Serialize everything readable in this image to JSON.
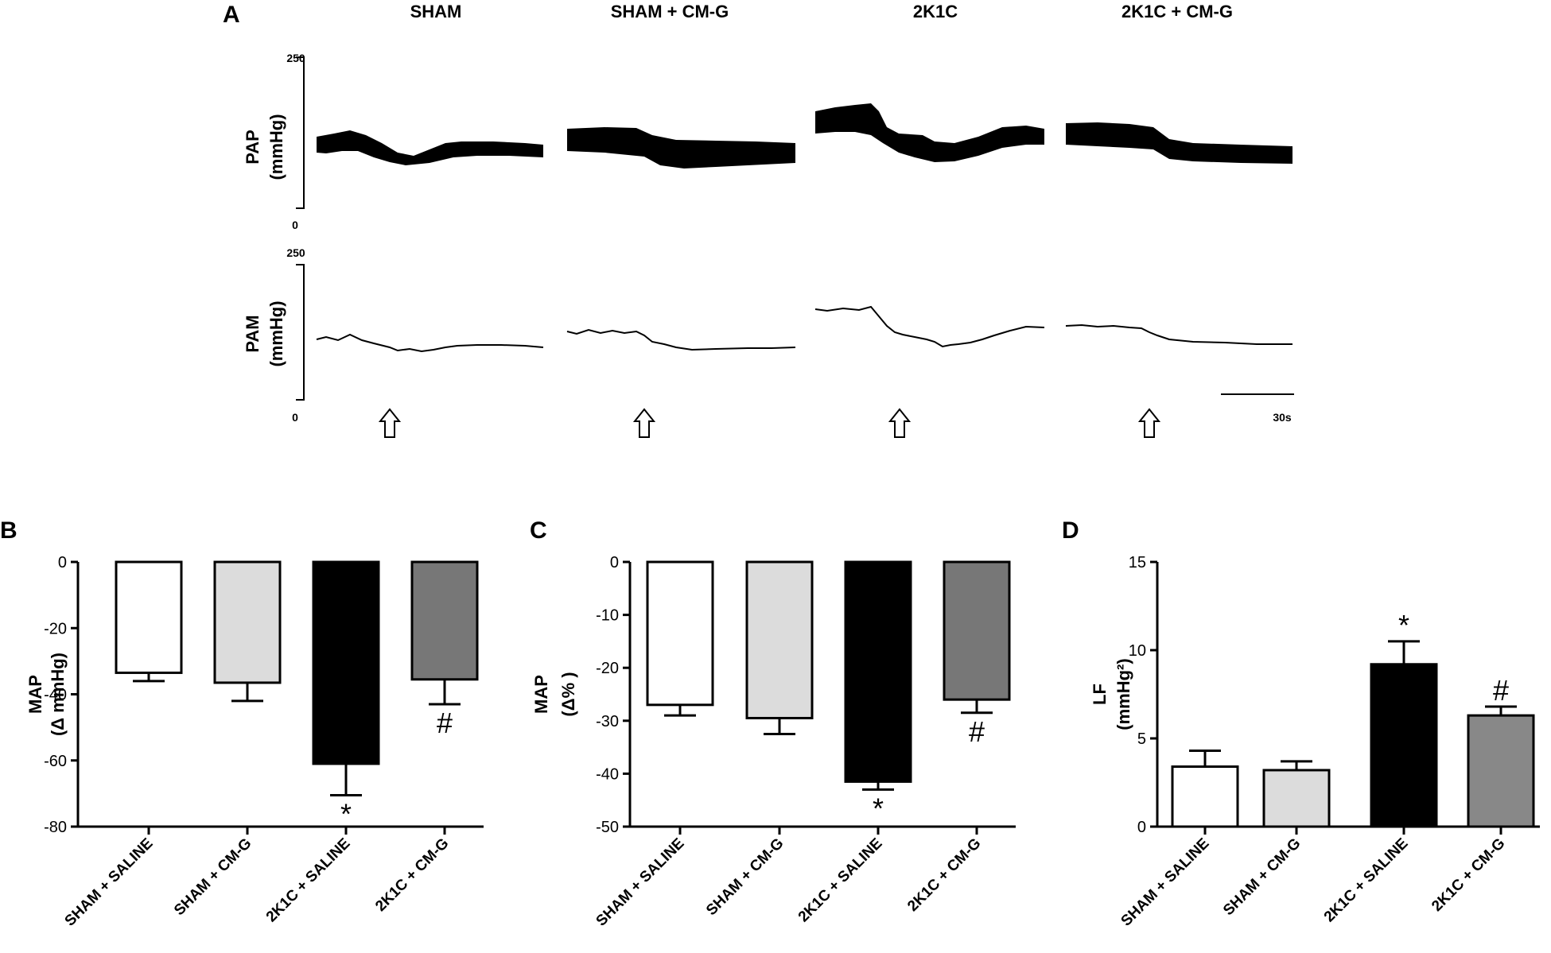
{
  "panel_a": {
    "label": "A",
    "groups": [
      "SHAM",
      "SHAM + CM-G",
      "2K1C",
      "2K1C + CM-G"
    ],
    "pap_label": "PAP",
    "pam_label": "PAM",
    "unit": "(mmHg)",
    "scale_max": "250",
    "scale_min": "0",
    "scale_bar": "30s"
  },
  "colors": {
    "sham_saline": "#ffffff",
    "sham_cmg": "#dcdcdc",
    "k_saline": "#000000",
    "k_cmg": "#777777",
    "k_cmg_lf": "#888888"
  },
  "chart_data": [
    {
      "type": "bar",
      "panel": "B",
      "ylabel": "MAP",
      "yunit": "(Δ mmHg)",
      "ylim": [
        -80,
        0
      ],
      "yticks": [
        0,
        -20,
        -40,
        -60,
        -80
      ],
      "categories": [
        "SHAM + SALINE",
        "SHAM + CM-G",
        "2K1C + SALINE",
        "2K1C + CM-G"
      ],
      "values": [
        -33.5,
        -36.5,
        -61,
        -35.5
      ],
      "errors": [
        2.5,
        5.5,
        9.5,
        7.5
      ],
      "annotations": [
        "",
        "",
        "*",
        "#"
      ]
    },
    {
      "type": "bar",
      "panel": "C",
      "ylabel": "MAP",
      "yunit": "(Δ% )",
      "ylim": [
        -50,
        0
      ],
      "yticks": [
        0,
        -10,
        -20,
        -30,
        -40,
        -50
      ],
      "categories": [
        "SHAM + SALINE",
        "SHAM + CM-G",
        "2K1C + SALINE",
        "2K1C + CM-G"
      ],
      "values": [
        -27,
        -29.5,
        -41.5,
        -26
      ],
      "errors": [
        2,
        3,
        1.5,
        2.5
      ],
      "annotations": [
        "",
        "",
        "*",
        "#"
      ]
    },
    {
      "type": "bar",
      "panel": "D",
      "ylabel": "LF",
      "yunit": "(mmHg²)",
      "ylim": [
        0,
        15
      ],
      "yticks": [
        0,
        5,
        10,
        15
      ],
      "categories": [
        "SHAM + SALINE",
        "SHAM + CM-G",
        "2K1C + SALINE",
        "2K1C + CM-G"
      ],
      "values": [
        3.4,
        3.2,
        9.2,
        6.3
      ],
      "errors": [
        0.9,
        0.5,
        1.3,
        0.5
      ],
      "annotations": [
        "",
        "",
        "*",
        "#"
      ]
    }
  ]
}
